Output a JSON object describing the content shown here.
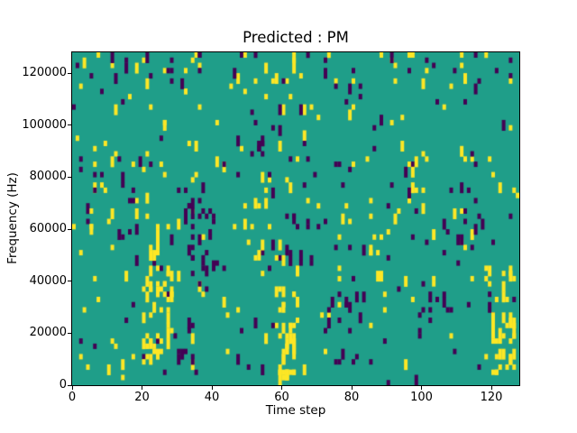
{
  "figure": {
    "title": "Predicted : PM",
    "xlabel": "Time step",
    "ylabel": "Frequency (Hz)",
    "background": "#ffffff"
  },
  "axes": {
    "x_ticks": [
      {
        "value": 0,
        "label": "0"
      },
      {
        "value": 20,
        "label": "20"
      },
      {
        "value": 40,
        "label": "40"
      },
      {
        "value": 60,
        "label": "60"
      },
      {
        "value": 80,
        "label": "80"
      },
      {
        "value": 100,
        "label": "100"
      },
      {
        "value": 120,
        "label": "120"
      }
    ],
    "y_ticks": [
      {
        "value": 0,
        "label": "0"
      },
      {
        "value": 20000,
        "label": "20000"
      },
      {
        "value": 40000,
        "label": "40000"
      },
      {
        "value": 60000,
        "label": "60000"
      },
      {
        "value": 80000,
        "label": "80000"
      },
      {
        "value": 100000,
        "label": "100000"
      },
      {
        "value": 120000,
        "label": "120000"
      }
    ]
  },
  "chart_data": {
    "type": "heatmap",
    "title": "Predicted : PM",
    "xlabel": "Time step",
    "ylabel": "Frequency (Hz)",
    "x_range": [
      0,
      128
    ],
    "y_range": [
      0,
      128000
    ],
    "grid": [
      128,
      64
    ],
    "legend": "none",
    "gridlines": false,
    "colors": {
      "background": "#1f9e89",
      "yellow": "#fde725",
      "dark": "#440154"
    },
    "description": "Spectrogram-like binary mask over a teal background: sparse yellow and dark-purple cells scattered over 128 time steps x 0-128000 Hz, with dense yellow clusters near t=22-28 (10-44 kHz), a strong yellow vertical streak at t=60-63 (0-30 kHz), a yellow cluster at t=120-127 (4-26 kHz), a dark-purple cluster at t=33-41 (36-72 kHz), and extra activity along the top band above 112 kHz.",
    "pattern": {
      "seed": 42,
      "tall_fraction": 0.3,
      "points": [
        {
          "color": "yellow",
          "region": [
            0,
            128,
            0,
            64
          ],
          "count": 150
        },
        {
          "color": "dark",
          "region": [
            0,
            128,
            0,
            64
          ],
          "count": 140
        },
        {
          "color": "yellow",
          "region": [
            0,
            128,
            56,
            64
          ],
          "count": 30
        },
        {
          "color": "dark",
          "region": [
            0,
            128,
            54,
            64
          ],
          "count": 18
        },
        {
          "color": "yellow",
          "region": [
            20,
            29,
            4,
            22
          ],
          "count": 45
        },
        {
          "color": "yellow",
          "region": [
            22,
            27,
            22,
            31
          ],
          "count": 10
        },
        {
          "color": "dark",
          "region": [
            33,
            41,
            18,
            36
          ],
          "count": 28
        },
        {
          "color": "dark",
          "region": [
            30,
            36,
            4,
            14
          ],
          "count": 8
        },
        {
          "color": "yellow",
          "region": [
            59,
            64,
            0,
            15
          ],
          "count": 42
        },
        {
          "color": "yellow",
          "region": [
            58,
            65,
            15,
            27
          ],
          "count": 12
        },
        {
          "color": "dark",
          "region": [
            62,
            71,
            22,
            34
          ],
          "count": 12
        },
        {
          "color": "yellow",
          "region": [
            120,
            127,
            2,
            13
          ],
          "count": 30
        },
        {
          "color": "yellow",
          "region": [
            117,
            127,
            16,
            23
          ],
          "count": 12
        },
        {
          "color": "dark",
          "region": [
            72,
            83,
            4,
            18
          ],
          "count": 14
        },
        {
          "color": "dark",
          "region": [
            97,
            107,
            10,
            24
          ],
          "count": 10
        },
        {
          "color": "yellow",
          "region": [
            45,
            55,
            24,
            40
          ],
          "count": 10
        },
        {
          "color": "dark",
          "region": [
            13,
            20,
            24,
            44
          ],
          "count": 12
        },
        {
          "color": "yellow",
          "region": [
            84,
            94,
            18,
            34
          ],
          "count": 10
        },
        {
          "color": "dark",
          "region": [
            110,
            118,
            26,
            40
          ],
          "count": 8
        },
        {
          "color": "yellow",
          "region": [
            4,
            12,
            26,
            44
          ],
          "count": 10
        },
        {
          "color": "dark",
          "region": [
            50,
            58,
            44,
            56
          ],
          "count": 8
        },
        {
          "color": "yellow",
          "region": [
            96,
            104,
            36,
            44
          ],
          "count": 6
        }
      ]
    }
  }
}
